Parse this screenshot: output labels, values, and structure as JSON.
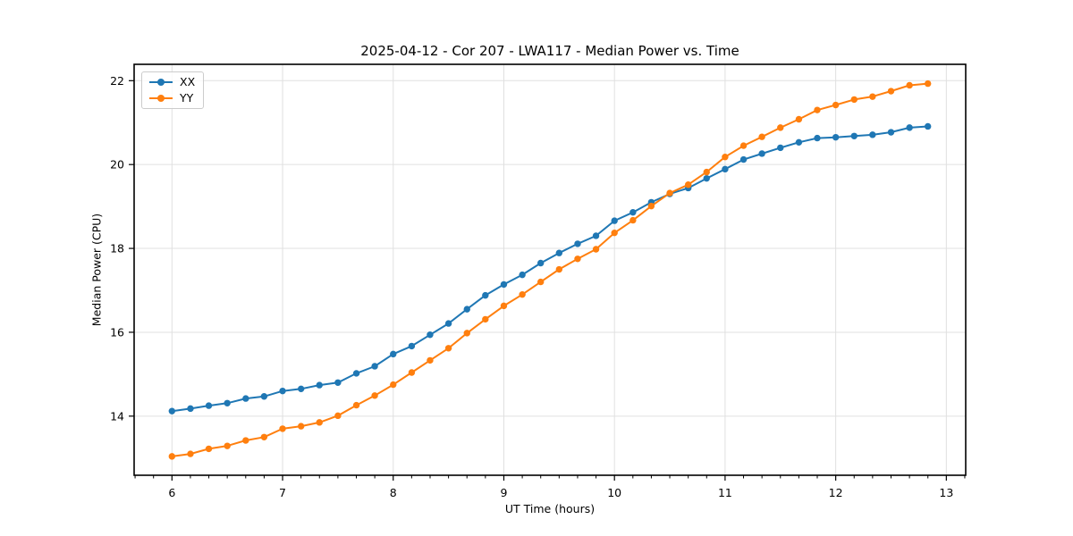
{
  "chart_data": {
    "type": "line",
    "title": "2025-04-12 - Cor 207 - LWA117 - Median Power vs. Time",
    "xlabel": "UT Time (hours)",
    "ylabel": "Median Power (CPU)",
    "xlim": [
      5.658,
      13.175
    ],
    "ylim": [
      12.59,
      22.39
    ],
    "x_ticks": [
      6,
      7,
      8,
      9,
      10,
      11,
      12,
      13
    ],
    "y_ticks": [
      14,
      16,
      18,
      20,
      22
    ],
    "x_minor_tick_step_hours": 0.1667,
    "grid": true,
    "legend_position": "upper left",
    "marker": "circle",
    "x": [
      6.0,
      6.167,
      6.333,
      6.5,
      6.667,
      6.833,
      7.0,
      7.167,
      7.333,
      7.5,
      7.667,
      7.833,
      8.0,
      8.167,
      8.333,
      8.5,
      8.667,
      8.833,
      9.0,
      9.167,
      9.333,
      9.5,
      9.667,
      9.833,
      10.0,
      10.167,
      10.333,
      10.5,
      10.667,
      10.833,
      11.0,
      11.167,
      11.333,
      11.5,
      11.667,
      11.833,
      12.0,
      12.167,
      12.333,
      12.5,
      12.667,
      12.833
    ],
    "series": [
      {
        "name": "XX",
        "color": "#1f77b4",
        "values": [
          14.12,
          14.18,
          14.25,
          14.31,
          14.42,
          14.47,
          14.6,
          14.65,
          14.74,
          14.8,
          15.02,
          15.19,
          15.48,
          15.67,
          15.94,
          16.21,
          16.55,
          16.88,
          17.14,
          17.37,
          17.65,
          17.89,
          18.11,
          18.3,
          18.66,
          18.86,
          19.1,
          19.3,
          19.44,
          19.67,
          19.89,
          20.12,
          20.26,
          20.4,
          20.53,
          20.63,
          20.65,
          20.68,
          20.71,
          20.77,
          20.88,
          20.91
        ]
      },
      {
        "name": "YY",
        "color": "#ff7f0e",
        "values": [
          13.04,
          13.1,
          13.22,
          13.29,
          13.42,
          13.5,
          13.7,
          13.76,
          13.85,
          14.01,
          14.26,
          14.49,
          14.75,
          15.04,
          15.33,
          15.62,
          15.98,
          16.31,
          16.63,
          16.9,
          17.2,
          17.5,
          17.75,
          17.98,
          18.37,
          18.67,
          19.01,
          19.32,
          19.52,
          19.82,
          20.18,
          20.45,
          20.66,
          20.88,
          21.08,
          21.3,
          21.42,
          21.55,
          21.62,
          21.75,
          21.89,
          21.93
        ]
      }
    ],
    "colors": {
      "grid": "#e0e0e0",
      "spine": "#000000",
      "background": "#ffffff"
    }
  }
}
